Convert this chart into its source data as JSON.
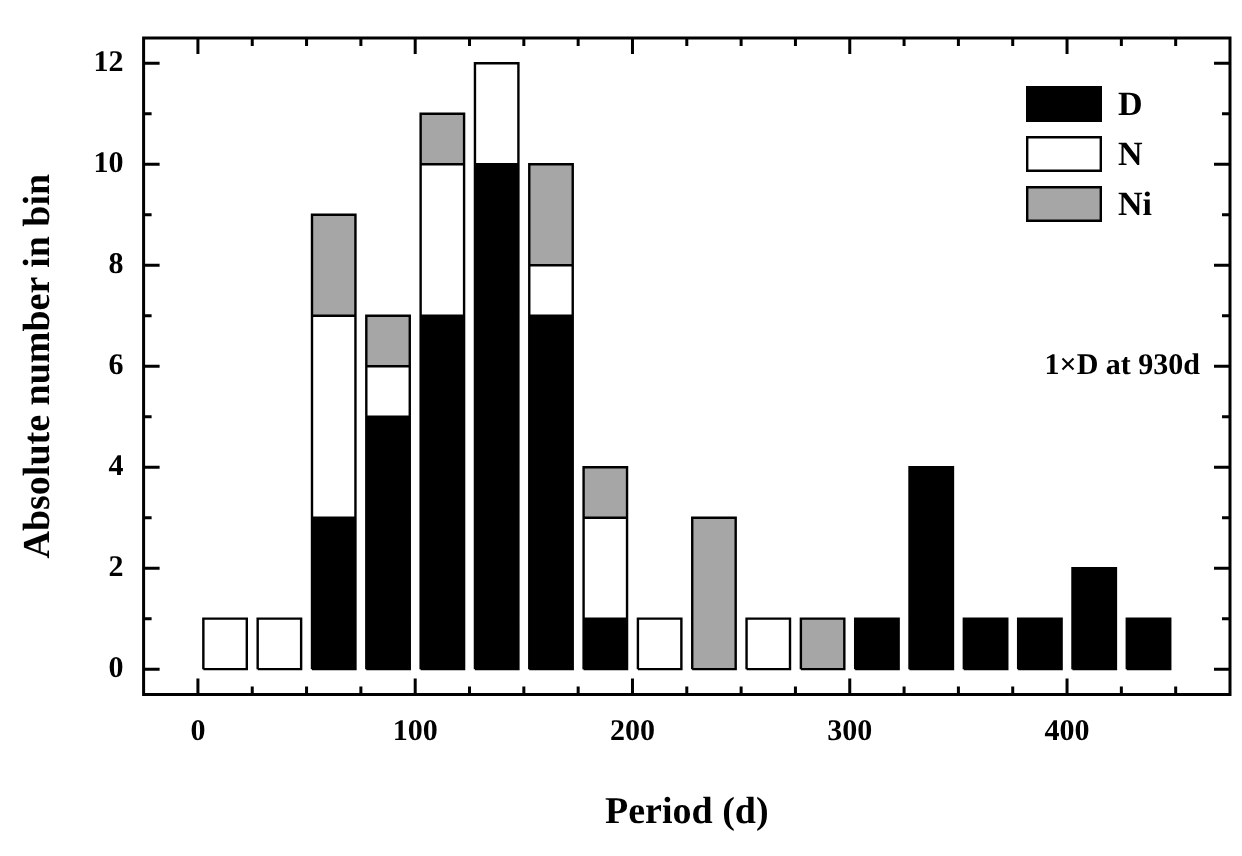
{
  "chart_data": {
    "type": "bar",
    "stacked": true,
    "xlabel": "Period (d)",
    "ylabel": "Absolute number in bin",
    "x": [
      12.5,
      37.5,
      62.5,
      87.5,
      112.5,
      137.5,
      162.5,
      187.5,
      212.5,
      237.5,
      262.5,
      287.5,
      312.5,
      337.5,
      362.5,
      387.5,
      412.5,
      437.5
    ],
    "series": [
      {
        "name": "D",
        "color": "#000000",
        "values": [
          0,
          0,
          3,
          5,
          7,
          10,
          7,
          1,
          0,
          0,
          0,
          0,
          1,
          4,
          1,
          1,
          2,
          1
        ]
      },
      {
        "name": "N",
        "color": "#ffffff",
        "values": [
          1,
          1,
          4,
          1,
          3,
          2,
          1,
          2,
          1,
          0,
          1,
          0,
          0,
          0,
          0,
          0,
          0,
          0
        ]
      },
      {
        "name": "Ni",
        "color": "#a6a6a6",
        "values": [
          0,
          0,
          2,
          1,
          1,
          0,
          2,
          1,
          0,
          3,
          0,
          1,
          0,
          0,
          0,
          0,
          0,
          0
        ]
      }
    ],
    "xlim": [
      -25,
      475
    ],
    "xticks": [
      0,
      {
        "value": 50,
        "label": null
      },
      100,
      {
        "value": 150,
        "label": null
      },
      200,
      {
        "value": 250,
        "label": null
      },
      300,
      {
        "value": 350,
        "label": null
      },
      400,
      {
        "value": 450,
        "label": null
      },
      {
        "value": 25,
        "label": null
      },
      {
        "value": 75,
        "label": null
      },
      {
        "value": 125,
        "label": null
      },
      {
        "value": 175,
        "label": null
      },
      {
        "value": 225,
        "label": null
      },
      {
        "value": 275,
        "label": null
      },
      {
        "value": 325,
        "label": null
      },
      {
        "value": 375,
        "label": null
      },
      {
        "value": 425,
        "label": null
      }
    ],
    "ylim": [
      -0.5,
      12.5
    ],
    "yticks": [
      0,
      {
        "value": 1,
        "label": null
      },
      2,
      {
        "value": 3,
        "label": null
      },
      4,
      {
        "value": 5,
        "label": null
      },
      6,
      {
        "value": 7,
        "label": null
      },
      8,
      {
        "value": 9,
        "label": null
      },
      10,
      {
        "value": 11,
        "label": null
      },
      12
    ],
    "legend": "top right",
    "grid": false,
    "annotations": [
      "1×D at 930d"
    ]
  }
}
